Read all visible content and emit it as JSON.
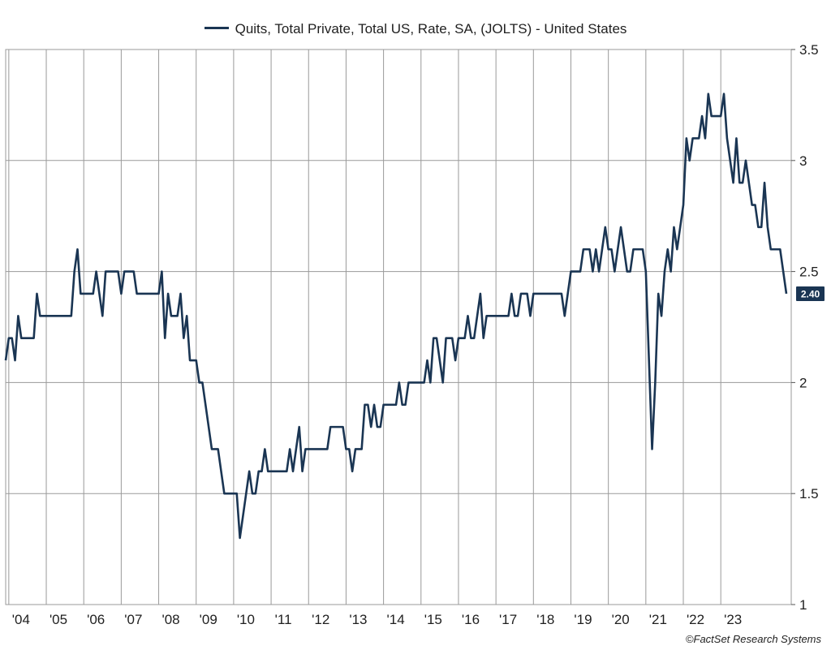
{
  "legend": {
    "label": "Quits, Total Private, Total US, Rate, SA, (JOLTS) - United States"
  },
  "credit": "©FactSet Research Systems",
  "colors": {
    "line": "#1a3553",
    "grid": "#9a9a9a",
    "axis": "#555555",
    "badge_bg": "#1a3553",
    "badge_text": "#ffffff"
  },
  "chart_data": {
    "type": "line",
    "series": [
      {
        "name": "Quits, Total Private, Total US, Rate, SA, (JOLTS) - United States",
        "values": [
          2.1,
          2.2,
          2.2,
          2.1,
          2.3,
          2.2,
          2.2,
          2.2,
          2.2,
          2.2,
          2.4,
          2.3,
          2.3,
          2.3,
          2.3,
          2.3,
          2.3,
          2.3,
          2.3,
          2.3,
          2.3,
          2.3,
          2.5,
          2.6,
          2.4,
          2.4,
          2.4,
          2.4,
          2.4,
          2.5,
          2.4,
          2.3,
          2.5,
          2.5,
          2.5,
          2.5,
          2.5,
          2.4,
          2.5,
          2.5,
          2.5,
          2.5,
          2.4,
          2.4,
          2.4,
          2.4,
          2.4,
          2.4,
          2.4,
          2.4,
          2.5,
          2.2,
          2.4,
          2.3,
          2.3,
          2.3,
          2.4,
          2.2,
          2.3,
          2.1,
          2.1,
          2.1,
          2.0,
          2.0,
          1.9,
          1.8,
          1.7,
          1.7,
          1.7,
          1.6,
          1.5,
          1.5,
          1.5,
          1.5,
          1.5,
          1.3,
          1.4,
          1.5,
          1.6,
          1.5,
          1.5,
          1.6,
          1.6,
          1.7,
          1.6,
          1.6,
          1.6,
          1.6,
          1.6,
          1.6,
          1.6,
          1.7,
          1.6,
          1.7,
          1.8,
          1.6,
          1.7,
          1.7,
          1.7,
          1.7,
          1.7,
          1.7,
          1.7,
          1.7,
          1.8,
          1.8,
          1.8,
          1.8,
          1.8,
          1.7,
          1.7,
          1.6,
          1.7,
          1.7,
          1.7,
          1.9,
          1.9,
          1.8,
          1.9,
          1.8,
          1.8,
          1.9,
          1.9,
          1.9,
          1.9,
          1.9,
          2.0,
          1.9,
          1.9,
          2.0,
          2.0,
          2.0,
          2.0,
          2.0,
          2.0,
          2.1,
          2.0,
          2.2,
          2.2,
          2.1,
          2.0,
          2.2,
          2.2,
          2.2,
          2.1,
          2.2,
          2.2,
          2.2,
          2.3,
          2.2,
          2.2,
          2.3,
          2.4,
          2.2,
          2.3,
          2.3,
          2.3,
          2.3,
          2.3,
          2.3,
          2.3,
          2.3,
          2.4,
          2.3,
          2.3,
          2.4,
          2.4,
          2.4,
          2.3,
          2.4,
          2.4,
          2.4,
          2.4,
          2.4,
          2.4,
          2.4,
          2.4,
          2.4,
          2.4,
          2.3,
          2.4,
          2.5,
          2.5,
          2.5,
          2.5,
          2.6,
          2.6,
          2.6,
          2.5,
          2.6,
          2.5,
          2.6,
          2.7,
          2.6,
          2.6,
          2.5,
          2.6,
          2.7,
          2.6,
          2.5,
          2.5,
          2.6,
          2.6,
          2.6,
          2.6,
          2.5,
          2.1,
          1.7,
          2.0,
          2.4,
          2.3,
          2.5,
          2.6,
          2.5,
          2.7,
          2.6,
          2.7,
          2.8,
          3.1,
          3.0,
          3.1,
          3.1,
          3.1,
          3.2,
          3.1,
          3.3,
          3.2,
          3.2,
          3.2,
          3.2,
          3.3,
          3.1,
          3.0,
          2.9,
          3.1,
          2.9,
          2.9,
          3.0,
          2.9,
          2.8,
          2.8,
          2.7,
          2.7,
          2.9,
          2.7,
          2.6,
          2.6,
          2.6,
          2.6,
          2.5,
          2.4
        ]
      }
    ],
    "start": "2003-12",
    "frequency": "monthly",
    "x_tick_labels": [
      "'04",
      "'05",
      "'06",
      "'07",
      "'08",
      "'09",
      "'10",
      "'11",
      "'12",
      "'13",
      "'14",
      "'15",
      "'16",
      "'17",
      "'18",
      "'19",
      "'20",
      "'21",
      "'22",
      "'23"
    ],
    "y_ticks": [
      1,
      1.5,
      2,
      2.5,
      3,
      3.5
    ],
    "y_tick_labels": [
      "1",
      "1.5",
      "2",
      "2.5",
      "3",
      "3.5"
    ],
    "ylim": [
      1,
      3.5
    ],
    "last_value_label": "2.40",
    "y_axis_position": "right",
    "legend_position": "top-center",
    "grid": true
  }
}
